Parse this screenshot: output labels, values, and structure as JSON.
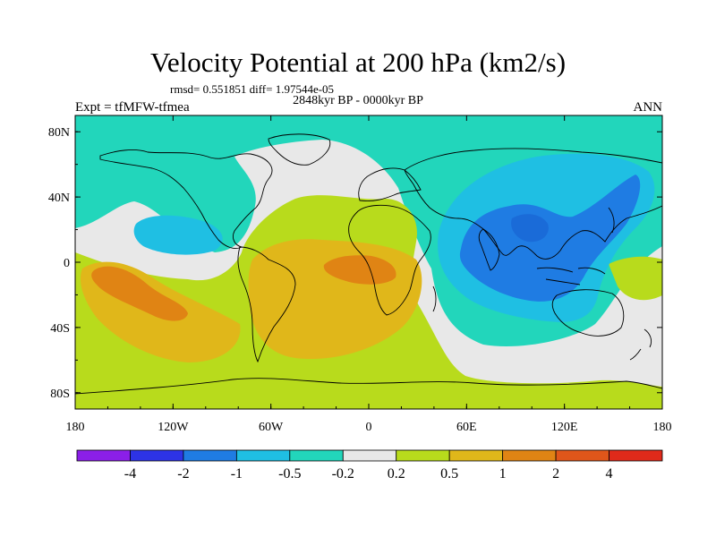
{
  "chart_data": {
    "type": "heatmap",
    "title": "Velocity Potential at 200 hPa (km2/s)",
    "stats": "rmsd= 0.551851 diff= 1.97544e-05",
    "period": "2848kyr BP - 0000kyr BP",
    "left_label": "Expt = tfMFW-tfmea",
    "right_label": "ANN",
    "lat_range": [
      -90,
      90
    ],
    "lon_range": [
      -180,
      180
    ],
    "x_ticks": [
      "180",
      "120W",
      "60W",
      "0",
      "60E",
      "120E",
      "180"
    ],
    "y_ticks": [
      "80N",
      "40N",
      "0",
      "40S",
      "80S"
    ],
    "colorbar": {
      "levels": [
        "-4",
        "-2",
        "-1",
        "-0.5",
        "-0.2",
        "0.2",
        "0.5",
        "1",
        "2",
        "4"
      ],
      "colors": [
        "#8b1fe8",
        "#2d33e6",
        "#1f7ce3",
        "#1fbfe3",
        "#22d6bb",
        "#e8e8e8",
        "#b8db1c",
        "#e0b71a",
        "#e08414",
        "#e0561a",
        "#e02a1a"
      ]
    },
    "regions": [
      {
        "name": "pacific-positive",
        "level": "0.5 to 2",
        "center": "30S, 150W"
      },
      {
        "name": "atlantic-africa-positive",
        "level": "0.5 to 2",
        "center": "0, 20W"
      },
      {
        "name": "asia-negative",
        "level": "-1 to -2",
        "center": "10N, 100E"
      },
      {
        "name": "eastern-pacific-negative",
        "level": "-0.5 to -1",
        "center": "20N, 110W"
      }
    ]
  }
}
